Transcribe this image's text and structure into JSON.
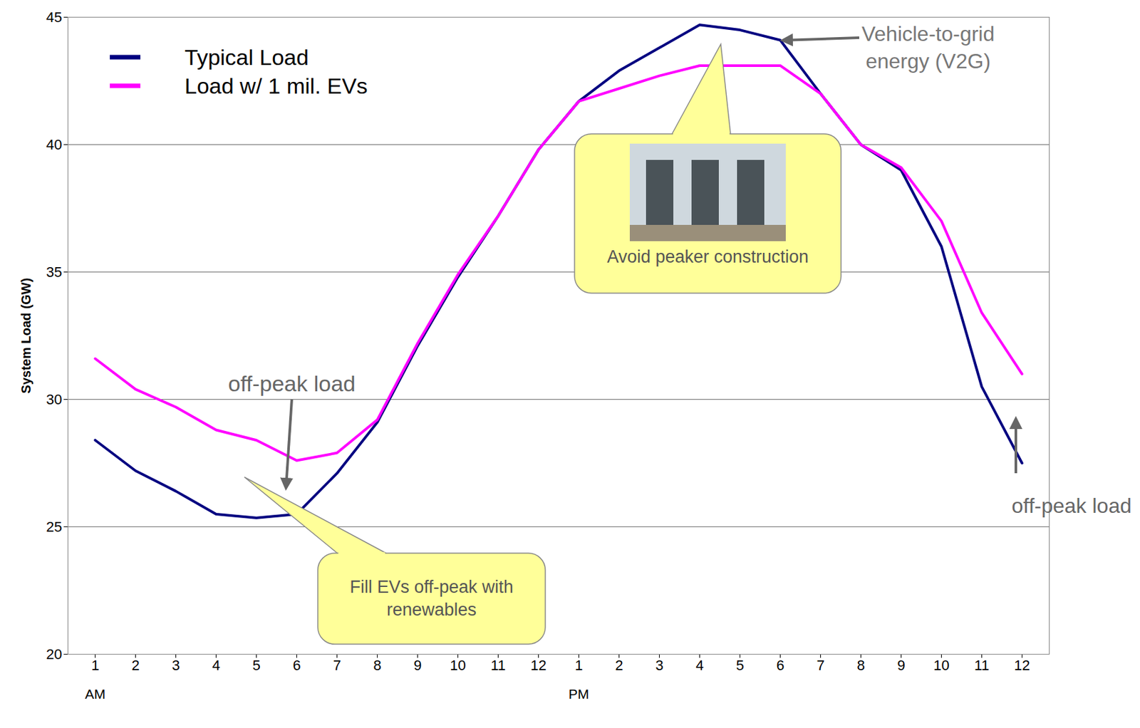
{
  "chart_data": {
    "type": "line",
    "categories": [
      "1",
      "2",
      "3",
      "4",
      "5",
      "6",
      "7",
      "8",
      "9",
      "10",
      "11",
      "12",
      "1",
      "2",
      "3",
      "4",
      "5",
      "6",
      "7",
      "8",
      "9",
      "10",
      "11",
      "12"
    ],
    "period_labels": [
      "AM",
      "PM"
    ],
    "ylabel": "System Load (GW)",
    "ylim": [
      20,
      45
    ],
    "yticks": [
      20,
      25,
      30,
      35,
      40,
      45
    ],
    "grid": true,
    "legend": "top-left",
    "series": [
      {
        "name": "Typical Load",
        "color": "#000080",
        "values": [
          28.4,
          27.2,
          26.4,
          25.5,
          25.35,
          25.5,
          27.1,
          29.1,
          32.1,
          34.8,
          37.2,
          39.8,
          41.7,
          42.9,
          43.8,
          44.7,
          44.5,
          44.1,
          42.0,
          40.0,
          39.0,
          36.0,
          30.5,
          27.5
        ]
      },
      {
        "name": "Load w/ 1 mil. EVs",
        "color": "#ff00ff",
        "values": [
          31.6,
          30.4,
          29.7,
          28.8,
          28.4,
          27.6,
          27.9,
          29.2,
          32.2,
          34.9,
          37.2,
          39.8,
          41.7,
          42.2,
          42.7,
          43.1,
          43.1,
          43.1,
          42.0,
          40.0,
          39.1,
          37.0,
          33.4,
          31.0
        ]
      }
    ],
    "annotations": [
      "off-peak load",
      "Fill EVs off-peak with renewables",
      "Avoid peaker construction",
      "Vehicle-to-grid energy (V2G)",
      "off-peak load"
    ]
  }
}
